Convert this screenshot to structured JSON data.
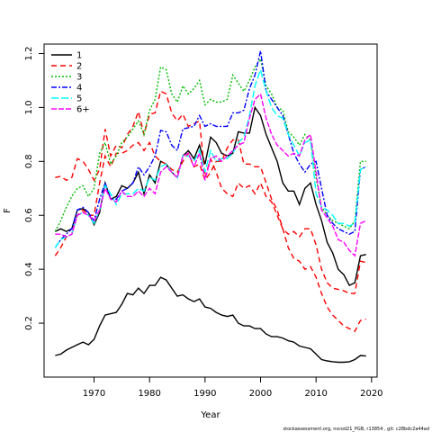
{
  "chart_data": {
    "type": "line",
    "title": "",
    "xlabel": "Year",
    "ylabel": "F",
    "xlim": [
      1961,
      2021
    ],
    "ylim": [
      0.0,
      1.235
    ],
    "xticks": [
      1970,
      1980,
      1990,
      2000,
      2010,
      2020
    ],
    "yticks": [
      0.2,
      0.4,
      0.6,
      0.8,
      1.0,
      1.2
    ],
    "xtick_labels": [
      "1970",
      "1980",
      "1990",
      "2000",
      "2010",
      "2020"
    ],
    "ytick_labels": [
      "0.2",
      "0.4",
      "0.6",
      "0.8",
      "1.0",
      "1.2"
    ],
    "grid": false,
    "legend_position": "top-left",
    "footer": "stockassessment.org, nscod21_PGB, r13854 , git: c28bdc2a44ad",
    "x": [
      1963,
      1964,
      1965,
      1966,
      1967,
      1968,
      1969,
      1970,
      1971,
      1972,
      1973,
      1974,
      1975,
      1976,
      1977,
      1978,
      1979,
      1980,
      1981,
      1982,
      1983,
      1984,
      1985,
      1986,
      1987,
      1988,
      1989,
      1990,
      1991,
      1992,
      1993,
      1994,
      1995,
      1996,
      1997,
      1998,
      1999,
      2000,
      2001,
      2002,
      2003,
      2004,
      2005,
      2006,
      2007,
      2008,
      2009,
      2010,
      2011,
      2012,
      2013,
      2014,
      2015,
      2016,
      2017,
      2018,
      2019
    ],
    "series": [
      {
        "name": "1",
        "color": "#000000",
        "dash": "solid",
        "values": [
          0.08,
          0.085,
          0.1,
          0.11,
          0.12,
          0.13,
          0.12,
          0.14,
          0.19,
          0.23,
          0.235,
          0.24,
          0.27,
          0.31,
          0.305,
          0.33,
          0.31,
          0.34,
          0.34,
          0.37,
          0.36,
          0.33,
          0.3,
          0.305,
          0.29,
          0.28,
          0.29,
          0.26,
          0.255,
          0.24,
          0.23,
          0.225,
          0.23,
          0.2,
          0.19,
          0.19,
          0.18,
          0.18,
          0.16,
          0.15,
          0.15,
          0.145,
          0.135,
          0.13,
          0.115,
          0.11,
          0.105,
          0.085,
          0.065,
          0.06,
          0.057,
          0.055,
          0.055,
          0.057,
          0.065,
          0.08,
          0.078
        ]
      },
      {
        "name": "1",
        "color": "#000000",
        "dash": "solid",
        "values": [
          0.54,
          0.55,
          0.54,
          0.55,
          0.62,
          0.625,
          0.61,
          0.565,
          0.61,
          0.72,
          0.66,
          0.67,
          0.71,
          0.7,
          0.72,
          0.76,
          0.68,
          0.75,
          0.72,
          0.8,
          0.79,
          0.76,
          0.74,
          0.82,
          0.84,
          0.81,
          0.86,
          0.79,
          0.89,
          0.87,
          0.83,
          0.82,
          0.83,
          0.91,
          0.905,
          0.905,
          1.0,
          0.97,
          0.9,
          0.85,
          0.8,
          0.72,
          0.69,
          0.69,
          0.64,
          0.7,
          0.72,
          0.64,
          0.58,
          0.5,
          0.46,
          0.4,
          0.38,
          0.34,
          0.35,
          0.45,
          0.455
        ]
      },
      {
        "name": "2",
        "color": "#ff0000",
        "dash": "6,4",
        "values": [
          0.74,
          0.745,
          0.73,
          0.74,
          0.81,
          0.8,
          0.77,
          0.73,
          0.77,
          0.92,
          0.82,
          0.86,
          0.85,
          0.9,
          0.93,
          0.985,
          0.9,
          0.975,
          0.98,
          1.06,
          1.05,
          0.98,
          0.95,
          0.975,
          0.93,
          0.94,
          0.95,
          0.74,
          0.81,
          0.76,
          0.7,
          0.68,
          0.67,
          0.72,
          0.7,
          0.71,
          0.68,
          0.72,
          0.67,
          0.65,
          0.6,
          0.55,
          0.53,
          0.54,
          0.52,
          0.55,
          0.55,
          0.49,
          0.4,
          0.35,
          0.33,
          0.325,
          0.32,
          0.31,
          0.31,
          0.43,
          0.425
        ]
      },
      {
        "name": "2",
        "color": "#ff0000",
        "dash": "6,4",
        "values": [
          0.45,
          0.48,
          0.52,
          0.53,
          0.6,
          0.62,
          0.6,
          0.6,
          0.72,
          0.82,
          0.78,
          0.83,
          0.83,
          0.84,
          0.86,
          0.87,
          0.84,
          0.87,
          0.82,
          0.8,
          0.79,
          0.77,
          0.76,
          0.8,
          0.83,
          0.78,
          0.79,
          0.73,
          0.76,
          0.8,
          0.8,
          0.85,
          0.88,
          0.88,
          0.79,
          0.79,
          0.78,
          0.78,
          0.72,
          0.66,
          0.62,
          0.55,
          0.48,
          0.44,
          0.43,
          0.4,
          0.41,
          0.37,
          0.31,
          0.26,
          0.23,
          0.21,
          0.19,
          0.18,
          0.17,
          0.21,
          0.215
        ]
      },
      {
        "name": "3",
        "color": "#00bb00",
        "dash": "2,2",
        "values": [
          0.54,
          0.58,
          0.63,
          0.67,
          0.7,
          0.71,
          0.67,
          0.7,
          0.83,
          0.87,
          0.79,
          0.82,
          0.87,
          0.89,
          0.92,
          0.95,
          0.9,
          0.99,
          1.03,
          1.15,
          1.14,
          1.05,
          1.02,
          1.08,
          1.05,
          1.07,
          1.1,
          1.01,
          1.03,
          1.02,
          1.02,
          1.03,
          1.12,
          1.09,
          1.06,
          1.1,
          1.15,
          1.18,
          1.08,
          1.05,
          1.0,
          0.99,
          0.91,
          0.89,
          0.86,
          0.9,
          0.88,
          0.74,
          0.63,
          0.6,
          0.58,
          0.57,
          0.56,
          0.55,
          0.58,
          0.8,
          0.8
        ]
      },
      {
        "name": "4",
        "color": "#0000ff",
        "dash": "6,2,2,2",
        "values": [
          0.48,
          0.51,
          0.53,
          0.55,
          0.62,
          0.63,
          0.61,
          0.58,
          0.66,
          0.72,
          0.66,
          0.66,
          0.69,
          0.7,
          0.72,
          0.78,
          0.75,
          0.78,
          0.82,
          0.915,
          0.91,
          0.86,
          0.84,
          0.92,
          0.925,
          0.93,
          0.97,
          0.93,
          0.94,
          0.93,
          0.93,
          0.93,
          0.98,
          0.98,
          0.99,
          1.07,
          1.12,
          1.21,
          1.06,
          1.03,
          1.0,
          0.97,
          0.9,
          0.83,
          0.79,
          0.76,
          0.79,
          0.8,
          0.7,
          0.6,
          0.57,
          0.55,
          0.54,
          0.53,
          0.54,
          0.77,
          0.78
        ]
      },
      {
        "name": "5",
        "color": "#00ffff",
        "dash": "8,3",
        "values": [
          0.48,
          0.51,
          0.52,
          0.53,
          0.6,
          0.61,
          0.6,
          0.57,
          0.62,
          0.71,
          0.68,
          0.64,
          0.68,
          0.68,
          0.68,
          0.7,
          0.69,
          0.74,
          0.73,
          0.78,
          0.79,
          0.76,
          0.74,
          0.82,
          0.82,
          0.8,
          0.84,
          0.76,
          0.84,
          0.8,
          0.81,
          0.81,
          0.83,
          0.87,
          0.89,
          0.97,
          1.08,
          1.14,
          1.06,
          1.0,
          0.97,
          0.96,
          0.9,
          0.86,
          0.82,
          0.87,
          0.88,
          0.68,
          0.63,
          0.62,
          0.6,
          0.57,
          0.57,
          0.56,
          0.57,
          0.77,
          0.78
        ]
      },
      {
        "name": "6+",
        "color": "#ff00ff",
        "dash": "6,2",
        "values": [
          0.53,
          0.53,
          0.52,
          0.53,
          0.6,
          0.61,
          0.6,
          0.58,
          0.62,
          0.7,
          0.66,
          0.65,
          0.69,
          0.67,
          0.67,
          0.69,
          0.67,
          0.7,
          0.68,
          0.76,
          0.78,
          0.76,
          0.74,
          0.82,
          0.83,
          0.78,
          0.83,
          0.73,
          0.81,
          0.82,
          0.8,
          0.82,
          0.84,
          0.86,
          0.87,
          0.96,
          1.03,
          1.05,
          0.96,
          0.9,
          0.86,
          0.84,
          0.82,
          0.83,
          0.82,
          0.88,
          0.9,
          0.76,
          0.62,
          0.59,
          0.56,
          0.51,
          0.5,
          0.47,
          0.45,
          0.57,
          0.58
        ]
      }
    ]
  }
}
